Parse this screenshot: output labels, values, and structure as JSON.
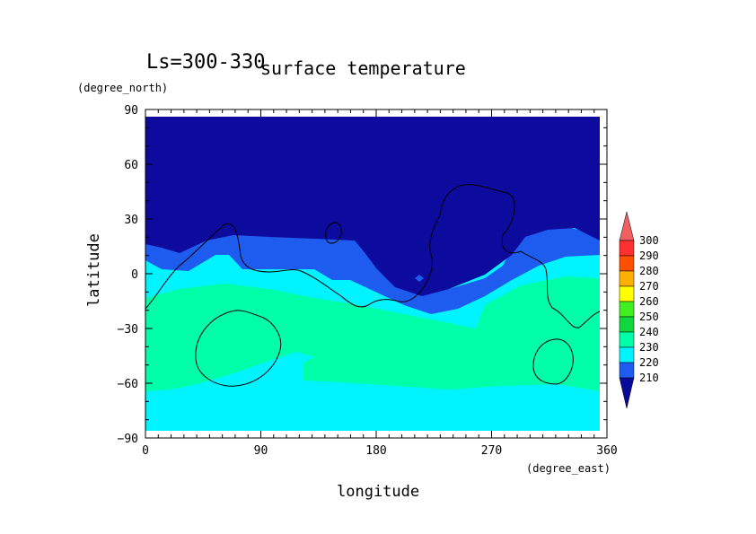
{
  "chart_data": {
    "type": "heatmap",
    "title": "surface temperature",
    "subtitle": "Ls=300-330",
    "xlabel": "longitude",
    "ylabel": "latitude",
    "xunits": "(degree_east)",
    "yunits": "(degree_north)",
    "xlim": [
      0,
      360
    ],
    "ylim": [
      -90,
      90
    ],
    "xticks": [
      "0",
      "90",
      "180",
      "270",
      "360"
    ],
    "yticks": [
      "90",
      "60",
      "30",
      "0",
      "−30",
      "−60",
      "−90"
    ],
    "colorbar": {
      "levels": [
        "210",
        "220",
        "230",
        "240",
        "250",
        "260",
        "270",
        "280",
        "290",
        "300"
      ],
      "colors": [
        "#0d16a0",
        "#1e5cf0",
        "#00f4ff",
        "#00ffa8",
        "#10d83c",
        "#40f020",
        "#ffff00",
        "#ffb000",
        "#ff5000",
        "#ff3030"
      ],
      "under_color": "#0a0a9a",
      "over_color": "#f06060"
    },
    "bands": [
      {
        "range": "<210",
        "color": "#0d0a9e"
      },
      {
        "range": "210-220",
        "color": "#1e5cf0"
      },
      {
        "range": "220-230",
        "color": "#00f4ff"
      },
      {
        "range": "230-240",
        "color": "#00ffa8"
      }
    ]
  }
}
